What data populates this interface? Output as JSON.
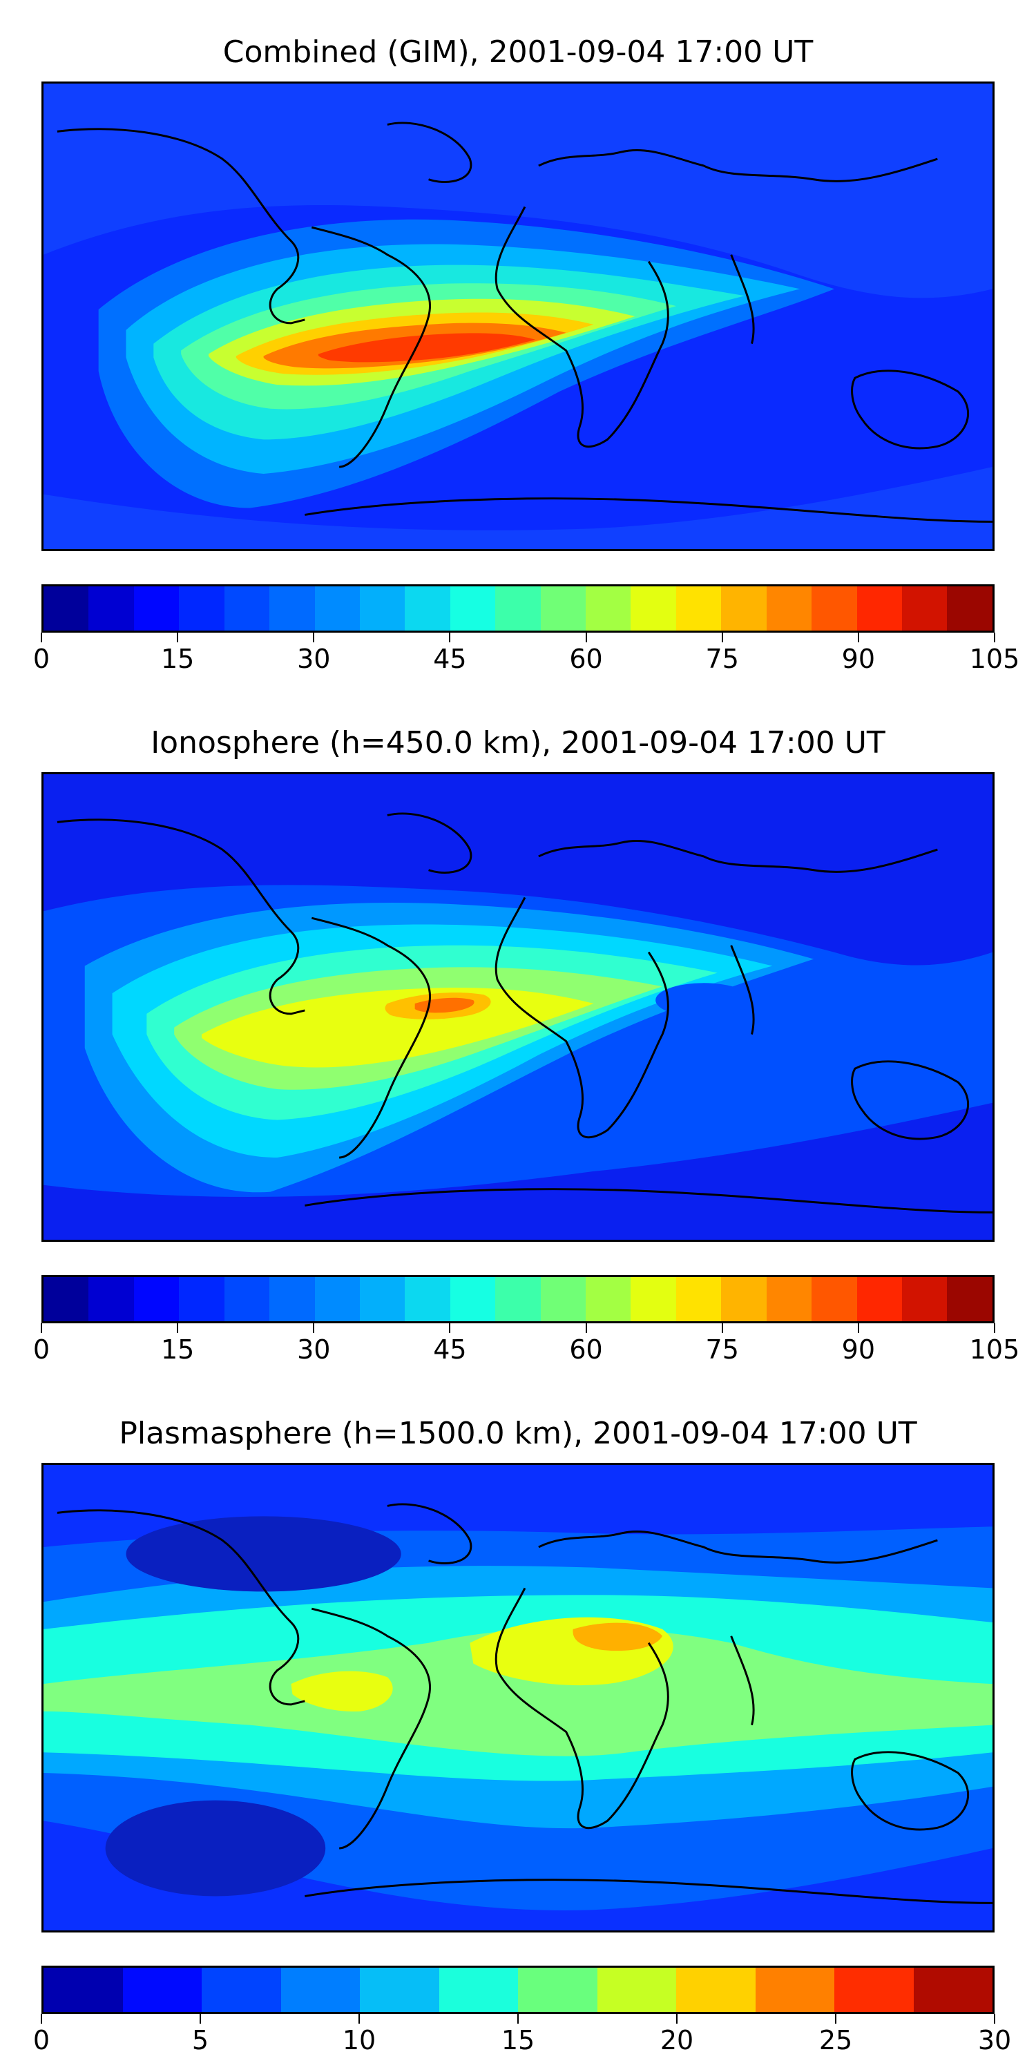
{
  "panels": [
    {
      "title": "Combined (GIM), 2001-09-04 17:00 UT",
      "colorbar": {
        "levels": 21,
        "ticks": [
          "0",
          "15",
          "30",
          "45",
          "60",
          "75",
          "90",
          "105"
        ]
      },
      "colors": {
        "background": "#1040ff",
        "bands": [
          "#0a2aff",
          "#0070ff",
          "#00b4ff",
          "#18e8e0",
          "#50ffa8",
          "#c8ff30",
          "#ffd000",
          "#ff7a00",
          "#ff3a00"
        ]
      }
    },
    {
      "title": "Ionosphere  (h=450.0 km), 2001-09-04 17:00 UT",
      "colorbar": {
        "levels": 21,
        "ticks": [
          "0",
          "15",
          "30",
          "45",
          "60",
          "75",
          "90",
          "105"
        ]
      },
      "colors": {
        "background": "#0a20f0",
        "bands": [
          "#0050ff",
          "#0098ff",
          "#00d8ff",
          "#30ffd0",
          "#90ff70",
          "#e8ff10",
          "#ffc000",
          "#ff7000"
        ]
      }
    },
    {
      "title": "Plasmasphere (h=1500.0 km), 2001-09-04 17:00 UT",
      "colorbar": {
        "levels": 12,
        "ticks": [
          "0",
          "5",
          "10",
          "15",
          "20",
          "25",
          "30"
        ]
      },
      "colors": {
        "background": "#0a30ff",
        "bands": [
          "#0060ff",
          "#00a8ff",
          "#18ffe0",
          "#80ff80",
          "#e8ff10",
          "#ffb000"
        ]
      }
    }
  ],
  "map": {
    "projection": "plate-carree",
    "coastlines": true,
    "coastline_color": "#000000"
  }
}
